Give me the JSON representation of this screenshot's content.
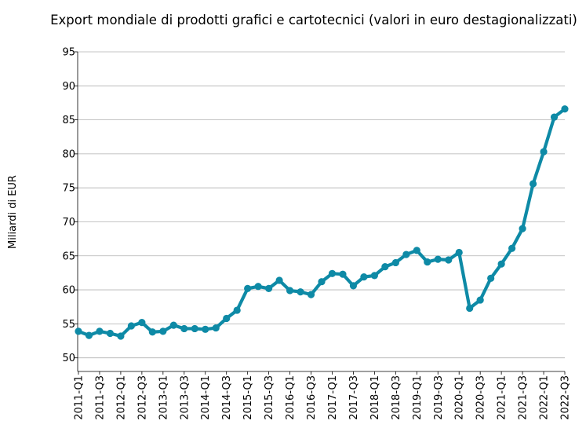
{
  "chart_data": {
    "type": "line",
    "title": "Export mondiale di prodotti grafici e cartotecnici (valori in euro destagionalizzati)",
    "xlabel": "",
    "ylabel": "Miliardi di EUR",
    "ylim": [
      48,
      95
    ],
    "yticks": [
      50,
      55,
      60,
      65,
      70,
      75,
      80,
      85,
      90,
      95
    ],
    "grid": "horizontal",
    "line_color": "#0e8aa6",
    "x_tick_labels": [
      "2011-Q1",
      "2011-Q3",
      "2012-Q1",
      "2012-Q3",
      "2013-Q1",
      "2013-Q3",
      "2014-Q1",
      "2014-Q3",
      "2015-Q1",
      "2015-Q3",
      "2016-Q1",
      "2016-Q3",
      "2017-Q1",
      "2017-Q3",
      "2018-Q1",
      "2018-Q3",
      "2019-Q1",
      "2019-Q3",
      "2020-Q1",
      "2020-Q3",
      "2021-Q1",
      "2021-Q3",
      "2022-Q1",
      "2022-Q3"
    ],
    "x": [
      "2011-Q1",
      "2011-Q2",
      "2011-Q3",
      "2011-Q4",
      "2012-Q1",
      "2012-Q2",
      "2012-Q3",
      "2012-Q4",
      "2013-Q1",
      "2013-Q2",
      "2013-Q3",
      "2013-Q4",
      "2014-Q1",
      "2014-Q2",
      "2014-Q3",
      "2014-Q4",
      "2015-Q1",
      "2015-Q2",
      "2015-Q3",
      "2015-Q4",
      "2016-Q1",
      "2016-Q2",
      "2016-Q3",
      "2016-Q4",
      "2017-Q1",
      "2017-Q2",
      "2017-Q3",
      "2017-Q4",
      "2018-Q1",
      "2018-Q2",
      "2018-Q3",
      "2018-Q4",
      "2019-Q1",
      "2019-Q2",
      "2019-Q3",
      "2019-Q4",
      "2020-Q1",
      "2020-Q2",
      "2020-Q3",
      "2020-Q4",
      "2021-Q1",
      "2021-Q2",
      "2021-Q3",
      "2021-Q4",
      "2022-Q1",
      "2022-Q2",
      "2022-Q3"
    ],
    "series": [
      {
        "values": [
          53.9,
          53.3,
          53.9,
          53.6,
          53.2,
          54.7,
          55.2,
          53.8,
          53.9,
          54.8,
          54.3,
          54.3,
          54.2,
          54.4,
          55.8,
          57.0,
          60.2,
          60.5,
          60.2,
          61.4,
          59.9,
          59.7,
          59.3,
          61.2,
          62.4,
          62.3,
          60.6,
          61.9,
          62.1,
          63.4,
          64.0,
          65.2,
          65.8,
          64.1,
          64.5,
          64.4,
          65.5,
          57.3,
          58.5,
          61.7,
          63.8,
          66.1,
          69.0,
          75.6,
          80.3,
          85.4,
          86.6
        ]
      }
    ]
  }
}
